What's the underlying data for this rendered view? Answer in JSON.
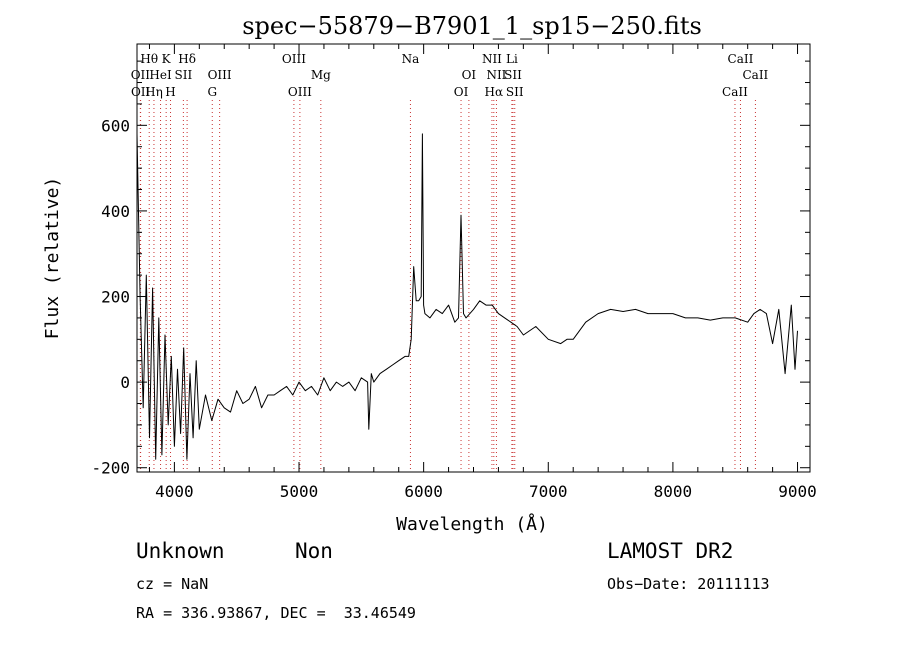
{
  "chart_data": {
    "type": "line",
    "title": "spec−55879−B7901_1_sp15−250.fits",
    "xlabel": "Wavelength (Å)",
    "ylabel": "Flux (relative)",
    "xlim": [
      3700,
      9100
    ],
    "ylim": [
      -210,
      790
    ],
    "x_ticks": [
      4000,
      5000,
      6000,
      7000,
      8000,
      9000
    ],
    "y_ticks": [
      -200,
      0,
      200,
      400,
      600
    ],
    "grid": false,
    "line_color": "#000000",
    "marker_color": "#c83232",
    "series": [
      {
        "x": [
          3700,
          3725,
          3750,
          3775,
          3800,
          3825,
          3850,
          3875,
          3900,
          3925,
          3950,
          3975,
          4000,
          4025,
          4050,
          4075,
          4100,
          4125,
          4150,
          4175,
          4200,
          4250,
          4300,
          4350,
          4400,
          4450,
          4500,
          4550,
          4600,
          4650,
          4700,
          4750,
          4800,
          4850,
          4900,
          4950,
          5000,
          5050,
          5100,
          5150,
          5200,
          5250,
          5300,
          5350,
          5400,
          5450,
          5500,
          5550,
          5560,
          5580,
          5600,
          5650,
          5700,
          5750,
          5800,
          5850,
          5880,
          5900,
          5920,
          5940,
          5960,
          5980,
          5990,
          6000,
          6010,
          6050,
          6100,
          6150,
          6200,
          6250,
          6280,
          6300,
          6320,
          6340,
          6400,
          6450,
          6500,
          6550,
          6600,
          6650,
          6700,
          6750,
          6800,
          6900,
          7000,
          7100,
          7150,
          7200,
          7300,
          7400,
          7500,
          7600,
          7700,
          7800,
          7900,
          8000,
          8100,
          8200,
          8300,
          8400,
          8500,
          8600,
          8650,
          8700,
          8750,
          8800,
          8850,
          8900,
          8950,
          8980,
          9000
        ],
        "y": [
          580,
          200,
          -60,
          250,
          -130,
          220,
          -180,
          150,
          -170,
          110,
          -100,
          60,
          -150,
          30,
          -120,
          80,
          -180,
          20,
          -130,
          50,
          -110,
          -30,
          -90,
          -40,
          -60,
          -70,
          -20,
          -50,
          -40,
          -10,
          -60,
          -30,
          -30,
          -20,
          -10,
          -30,
          0,
          -20,
          -10,
          -30,
          10,
          -20,
          0,
          -10,
          0,
          -20,
          10,
          0,
          -110,
          20,
          0,
          20,
          30,
          40,
          50,
          60,
          60,
          100,
          270,
          190,
          190,
          200,
          580,
          180,
          160,
          150,
          170,
          160,
          180,
          140,
          150,
          390,
          160,
          150,
          170,
          190,
          180,
          180,
          160,
          150,
          140,
          130,
          110,
          130,
          100,
          90,
          100,
          100,
          140,
          160,
          170,
          165,
          170,
          160,
          160,
          160,
          150,
          150,
          145,
          150,
          150,
          140,
          160,
          170,
          160,
          90,
          170,
          20,
          180,
          30,
          120
        ]
      }
    ],
    "line_markers": [
      {
        "label": "Hθ",
        "x": 3798,
        "row": 1
      },
      {
        "label": "K",
        "x": 3934,
        "row": 1
      },
      {
        "label": "Hδ",
        "x": 4102,
        "row": 1
      },
      {
        "label": "OII",
        "x": 3727,
        "row": 2
      },
      {
        "label": "HeI",
        "x": 3889,
        "row": 2
      },
      {
        "label": "SII",
        "x": 4072,
        "row": 2
      },
      {
        "label": "OIII",
        "x": 4363,
        "row": 2
      },
      {
        "label": "OII",
        "x": 3729,
        "row": 3
      },
      {
        "label": "Hη",
        "x": 3836,
        "row": 3
      },
      {
        "label": "H",
        "x": 3969,
        "row": 3
      },
      {
        "label": "G",
        "x": 4304,
        "row": 3
      },
      {
        "label": "OIII",
        "x": 4959,
        "row": 1
      },
      {
        "label": "Mg",
        "x": 5175,
        "row": 2
      },
      {
        "label": "OIII",
        "x": 5007,
        "row": 3
      },
      {
        "label": "Na",
        "x": 5894,
        "row": 1
      },
      {
        "label": "NII",
        "x": 6548,
        "row": 1
      },
      {
        "label": "Li",
        "x": 6708,
        "row": 1
      },
      {
        "label": "OI",
        "x": 6363,
        "row": 2
      },
      {
        "label": "NII",
        "x": 6584,
        "row": 2
      },
      {
        "label": "SII",
        "x": 6717,
        "row": 2
      },
      {
        "label": "OI",
        "x": 6300,
        "row": 3
      },
      {
        "label": "Hα",
        "x": 6563,
        "row": 3
      },
      {
        "label": "SII",
        "x": 6731,
        "row": 3
      },
      {
        "label": "CaII",
        "x": 8542,
        "row": 1
      },
      {
        "label": "CaII",
        "x": 8662,
        "row": 2
      },
      {
        "label": "CaII",
        "x": 8498,
        "row": 3
      }
    ]
  },
  "info": {
    "class_label": "Unknown",
    "subclass_label": "Non",
    "survey": "LAMOST DR2",
    "cz": "cz = NaN",
    "obs_date": "Obs−Date: 20111113",
    "coords": "RA = 336.93867, DEC =  33.46549"
  }
}
